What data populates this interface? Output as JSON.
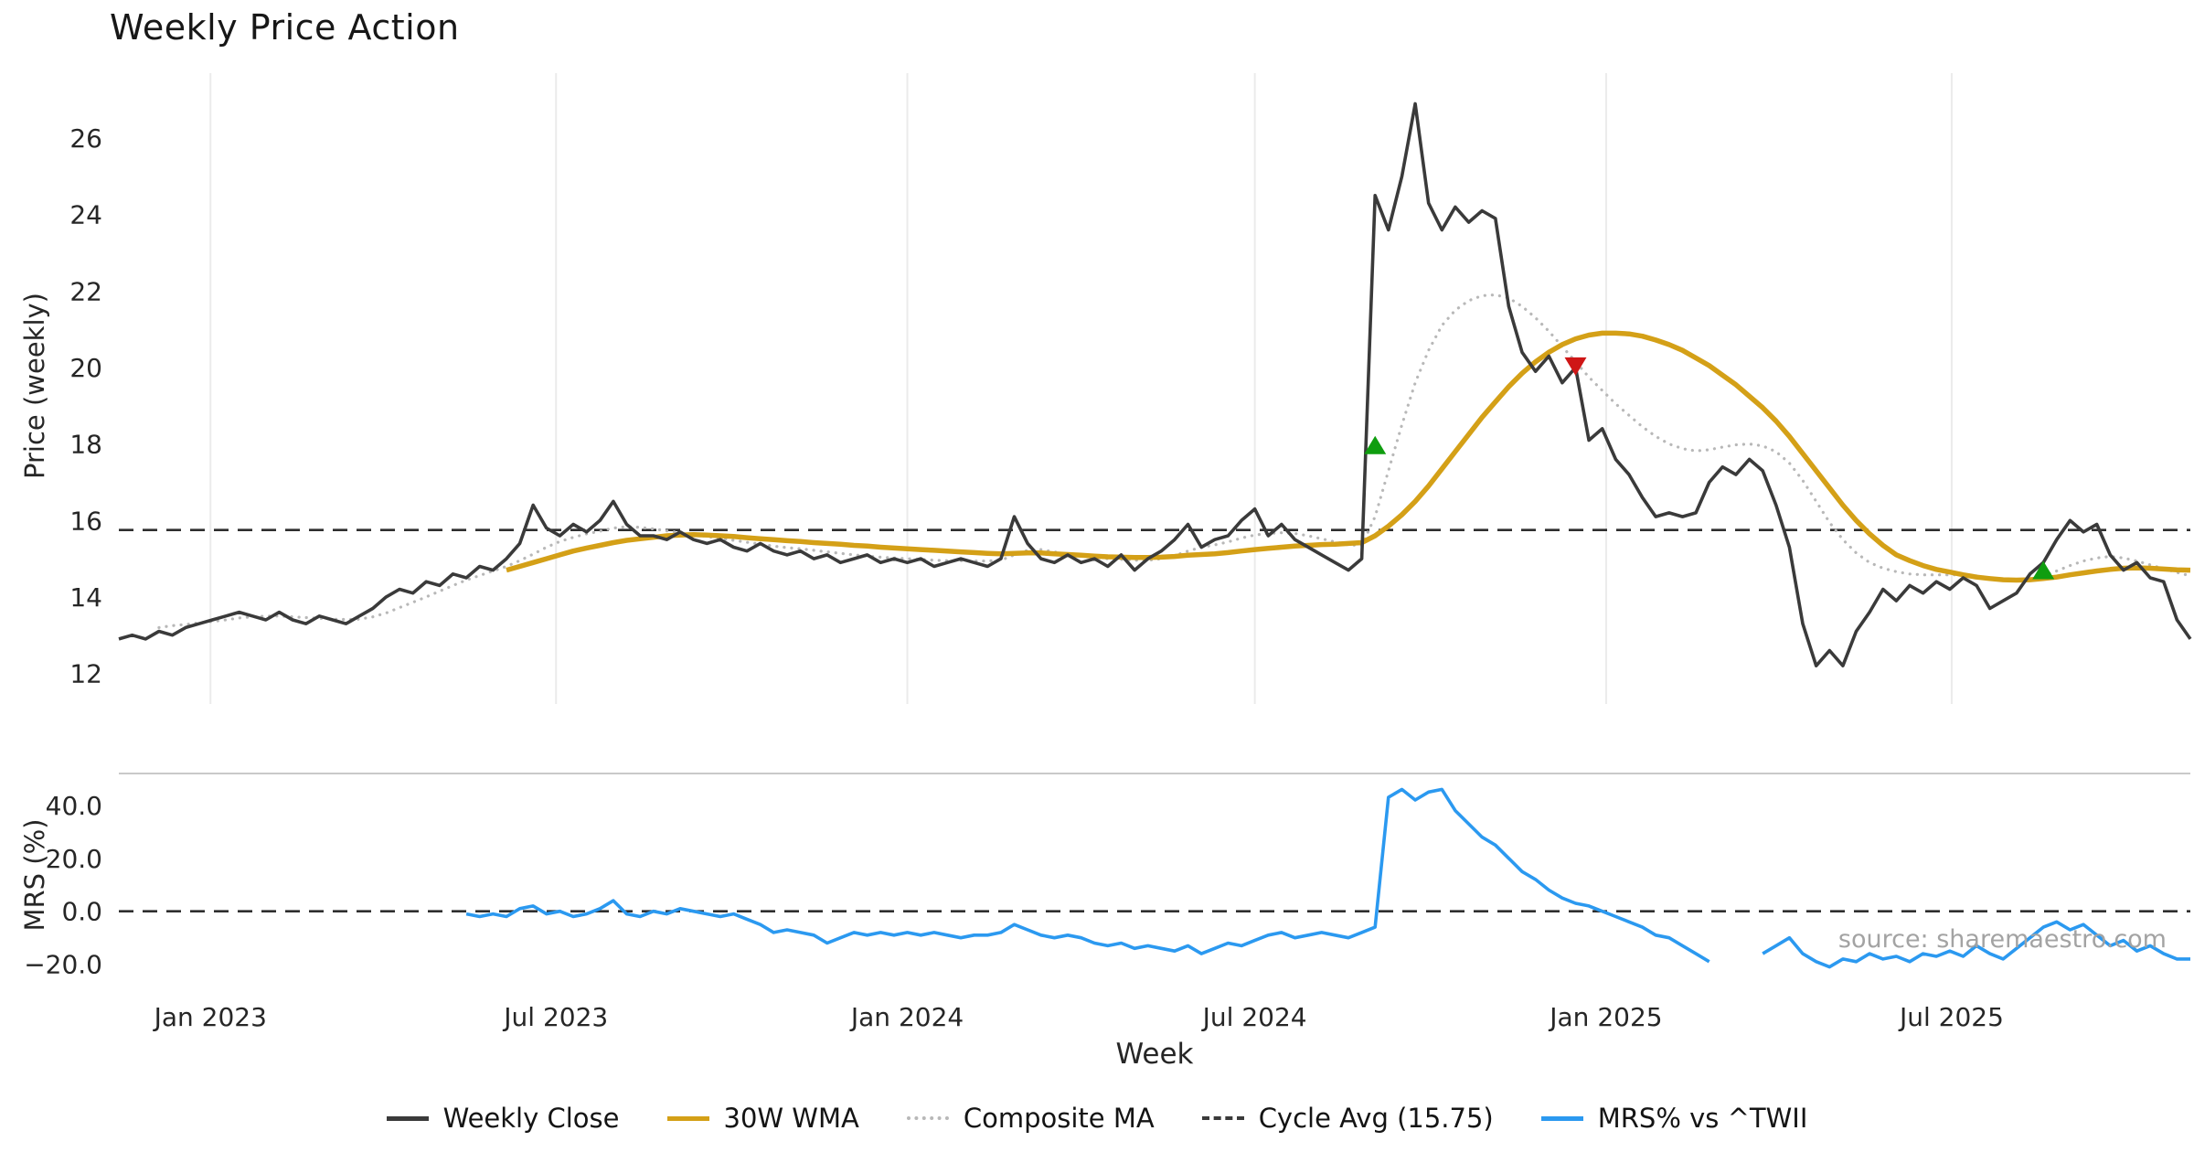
{
  "chart_data": {
    "type": "line",
    "title": "Weekly Price Action",
    "xlabel": "Week",
    "watermark": "source: sharemaestro.com",
    "x_start": "2022-11-14",
    "interval_days": 7,
    "x_ticks": [
      {
        "date": "2023-01-01",
        "label": "Jan 2023"
      },
      {
        "date": "2023-07-01",
        "label": "Jul 2023"
      },
      {
        "date": "2024-01-01",
        "label": "Jan 2024"
      },
      {
        "date": "2024-07-01",
        "label": "Jul 2024"
      },
      {
        "date": "2025-01-01",
        "label": "Jan 2025"
      },
      {
        "date": "2025-07-01",
        "label": "Jul 2025"
      }
    ],
    "panels": [
      {
        "name": "price",
        "ylabel": "Price (weekly)",
        "ylim": [
          11.2,
          27.7
        ],
        "yticks": [
          12,
          14,
          16,
          18,
          20,
          22,
          24,
          26
        ],
        "ytick_labels": [
          "12",
          "14",
          "16",
          "18",
          "20",
          "22",
          "24",
          "26"
        ],
        "ref_line": {
          "label": "Cycle Avg",
          "value": 15.75
        },
        "grid": "vertical",
        "series": [
          {
            "name": "Weekly Close",
            "color": "#3a3a3a",
            "style": "solid",
            "width": 3.6,
            "values": [
              12.9,
              13.0,
              12.9,
              13.1,
              13.0,
              13.2,
              13.3,
              13.4,
              13.5,
              13.6,
              13.5,
              13.4,
              13.6,
              13.4,
              13.3,
              13.5,
              13.4,
              13.3,
              13.5,
              13.7,
              14.0,
              14.2,
              14.1,
              14.4,
              14.3,
              14.6,
              14.5,
              14.8,
              14.7,
              15.0,
              15.4,
              16.4,
              15.8,
              15.6,
              15.9,
              15.7,
              16.0,
              16.5,
              15.9,
              15.6,
              15.6,
              15.5,
              15.7,
              15.5,
              15.4,
              15.5,
              15.3,
              15.2,
              15.4,
              15.2,
              15.1,
              15.2,
              15.0,
              15.1,
              14.9,
              15.0,
              15.1,
              14.9,
              15.0,
              14.9,
              15.0,
              14.8,
              14.9,
              15.0,
              14.9,
              14.8,
              15.0,
              16.1,
              15.4,
              15.0,
              14.9,
              15.1,
              14.9,
              15.0,
              14.8,
              15.1,
              14.7,
              15.0,
              15.2,
              15.5,
              15.9,
              15.3,
              15.5,
              15.6,
              16.0,
              16.3,
              15.6,
              15.9,
              15.5,
              15.3,
              15.1,
              14.9,
              14.7,
              15.0,
              24.5,
              23.6,
              25.0,
              26.9,
              24.3,
              23.6,
              24.2,
              23.8,
              24.1,
              23.9,
              21.6,
              20.4,
              19.9,
              20.3,
              19.6,
              20.0,
              18.1,
              18.4,
              17.6,
              17.2,
              16.6,
              16.1,
              16.2,
              16.1,
              16.2,
              17.0,
              17.4,
              17.2,
              17.6,
              17.3,
              16.4,
              15.3,
              13.3,
              12.2,
              12.6,
              12.2,
              13.1,
              13.6,
              14.2,
              13.9,
              14.3,
              14.1,
              14.4,
              14.2,
              14.5,
              14.3,
              13.7,
              13.9,
              14.1,
              14.6,
              14.9,
              15.5,
              16.0,
              15.7,
              15.9,
              15.1,
              14.7,
              14.9,
              14.5,
              14.4,
              13.4,
              12.9
            ]
          },
          {
            "name": "30W WMA",
            "color": "#d4a017",
            "style": "solid",
            "width": 5.5,
            "values": [
              null,
              null,
              null,
              null,
              null,
              null,
              null,
              null,
              null,
              null,
              null,
              null,
              null,
              null,
              null,
              null,
              null,
              null,
              null,
              null,
              null,
              null,
              null,
              null,
              null,
              null,
              null,
              null,
              null,
              14.7,
              14.8,
              14.9,
              15.0,
              15.1,
              15.2,
              15.28,
              15.35,
              15.42,
              15.48,
              15.52,
              15.56,
              15.6,
              15.62,
              15.63,
              15.62,
              15.6,
              15.58,
              15.55,
              15.52,
              15.5,
              15.47,
              15.45,
              15.42,
              15.4,
              15.38,
              15.35,
              15.33,
              15.3,
              15.28,
              15.26,
              15.24,
              15.22,
              15.2,
              15.18,
              15.16,
              15.14,
              15.13,
              15.14,
              15.15,
              15.15,
              15.13,
              15.11,
              15.09,
              15.07,
              15.05,
              15.04,
              15.03,
              15.03,
              15.04,
              15.06,
              15.09,
              15.11,
              15.13,
              15.16,
              15.2,
              15.24,
              15.27,
              15.3,
              15.33,
              15.35,
              15.37,
              15.38,
              15.4,
              15.42,
              15.6,
              15.85,
              16.15,
              16.5,
              16.9,
              17.35,
              17.8,
              18.25,
              18.7,
              19.1,
              19.5,
              19.85,
              20.15,
              20.4,
              20.6,
              20.75,
              20.85,
              20.9,
              20.9,
              20.88,
              20.82,
              20.72,
              20.6,
              20.45,
              20.25,
              20.05,
              19.8,
              19.55,
              19.25,
              18.95,
              18.6,
              18.2,
              17.75,
              17.3,
              16.85,
              16.4,
              16.0,
              15.65,
              15.35,
              15.1,
              14.95,
              14.82,
              14.72,
              14.65,
              14.58,
              14.52,
              14.48,
              14.45,
              14.44,
              14.45,
              14.48,
              14.52,
              14.58,
              14.63,
              14.68,
              14.72,
              14.75,
              14.76,
              14.75,
              14.73,
              14.71,
              14.7
            ]
          },
          {
            "name": "Composite MA",
            "color": "#b8b8b8",
            "style": "dotted",
            "width": 3.2,
            "values": [
              null,
              null,
              null,
              13.2,
              13.25,
              13.28,
              13.32,
              13.36,
              13.4,
              13.45,
              13.48,
              13.5,
              13.5,
              13.48,
              13.46,
              13.44,
              13.42,
              13.41,
              13.42,
              13.48,
              13.58,
              13.72,
              13.86,
              14.0,
              14.15,
              14.3,
              14.44,
              14.56,
              14.68,
              14.8,
              14.95,
              15.12,
              15.3,
              15.45,
              15.56,
              15.65,
              15.72,
              15.8,
              15.84,
              15.82,
              15.78,
              15.73,
              15.68,
              15.63,
              15.58,
              15.53,
              15.48,
              15.43,
              15.38,
              15.33,
              15.29,
              15.26,
              15.22,
              15.18,
              15.14,
              15.1,
              15.07,
              15.04,
              15.02,
              15.0,
              14.98,
              14.96,
              14.95,
              14.95,
              14.94,
              14.94,
              14.96,
              15.1,
              15.22,
              15.24,
              15.18,
              15.12,
              15.08,
              15.04,
              15.0,
              14.98,
              14.96,
              14.96,
              15.0,
              15.08,
              15.2,
              15.3,
              15.36,
              15.44,
              15.54,
              15.62,
              15.66,
              15.68,
              15.66,
              15.6,
              15.52,
              15.44,
              15.36,
              15.35,
              16.1,
              17.3,
              18.5,
              19.6,
              20.45,
              21.1,
              21.5,
              21.75,
              21.88,
              21.9,
              21.82,
              21.6,
              21.3,
              20.95,
              20.55,
              20.15,
              19.75,
              19.4,
              19.05,
              18.75,
              18.45,
              18.2,
              18.0,
              17.88,
              17.82,
              17.85,
              17.92,
              17.98,
              18.0,
              17.95,
              17.8,
              17.5,
              17.05,
              16.5,
              15.95,
              15.5,
              15.15,
              14.9,
              14.75,
              14.66,
              14.6,
              14.58,
              14.58,
              14.58,
              14.58,
              14.55,
              14.5,
              14.46,
              14.45,
              14.48,
              14.56,
              14.68,
              14.82,
              14.94,
              15.02,
              15.06,
              15.02,
              14.94,
              14.84,
              14.74,
              14.64,
              14.55
            ]
          }
        ],
        "markers": [
          {
            "shape": "triangle-up",
            "color": "#0f9d0f",
            "date": "2024-09-02",
            "value": 17.95
          },
          {
            "shape": "triangle-down",
            "color": "#cf1616",
            "date": "2024-12-16",
            "value": 20.05
          },
          {
            "shape": "triangle-up",
            "color": "#0f9d0f",
            "date": "2025-08-18",
            "value": 14.68
          }
        ]
      },
      {
        "name": "mrs",
        "ylabel": "MRS (%)",
        "ylim": [
          -27,
          52
        ],
        "yticks": [
          -20,
          0,
          20,
          40
        ],
        "ytick_labels": [
          "−20.0",
          "0.0",
          "20.0",
          "40.0"
        ],
        "ref_line": {
          "label": "zero",
          "value": 0
        },
        "grid": "none",
        "series": [
          {
            "name": "MRS% vs ^TWII",
            "color": "#2b99f0",
            "style": "solid",
            "width": 3.6,
            "values": [
              null,
              null,
              null,
              null,
              null,
              null,
              null,
              null,
              null,
              null,
              null,
              null,
              null,
              null,
              null,
              null,
              null,
              null,
              null,
              null,
              null,
              null,
              null,
              null,
              null,
              null,
              -1,
              -2,
              -1,
              -2,
              1,
              2,
              -1,
              0,
              -2,
              -1,
              1,
              4,
              -1,
              -2,
              0,
              -1,
              1,
              0,
              -1,
              -2,
              -1,
              -3,
              -5,
              -8,
              -7,
              -8,
              -9,
              -12,
              -10,
              -8,
              -9,
              -8,
              -9,
              -8,
              -9,
              -8,
              -9,
              -10,
              -9,
              -9,
              -8,
              -5,
              -7,
              -9,
              -10,
              -9,
              -10,
              -12,
              -13,
              -12,
              -14,
              -13,
              -14,
              -15,
              -13,
              -16,
              -14,
              -12,
              -13,
              -11,
              -9,
              -8,
              -10,
              -9,
              -8,
              -9,
              -10,
              -8,
              -6,
              43,
              46,
              42,
              45,
              46,
              38,
              33,
              28,
              25,
              20,
              15,
              12,
              8,
              5,
              3,
              2,
              0,
              -2,
              -4,
              -6,
              -9,
              -10,
              -13,
              -16,
              -19,
              null,
              null,
              null,
              -16,
              -13,
              -10,
              -16,
              -19,
              -21,
              -18,
              -19,
              -16,
              -18,
              -17,
              -19,
              -16,
              -17,
              -15,
              -17,
              -13,
              -16,
              -18,
              -14,
              -10,
              -6,
              -4,
              -7,
              -5,
              -9,
              -13,
              -11,
              -15,
              -13,
              -16,
              -18,
              -18
            ]
          }
        ],
        "markers": []
      }
    ],
    "legend": [
      {
        "label": "Weekly Close",
        "color": "#3a3a3a",
        "style": "solid"
      },
      {
        "label": "30W WMA",
        "color": "#d4a017",
        "style": "solid"
      },
      {
        "label": "Composite MA",
        "color": "#b8b8b8",
        "style": "dotted"
      },
      {
        "label": "Cycle Avg (15.75)",
        "color": "#3a3a3a",
        "style": "dashed"
      },
      {
        "label": "MRS% vs ^TWII",
        "color": "#2b99f0",
        "style": "solid"
      }
    ]
  }
}
